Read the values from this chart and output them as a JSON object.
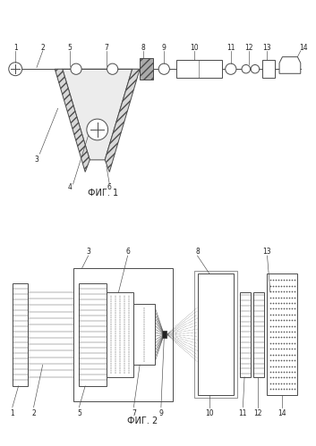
{
  "line_color": "#4a4a4a",
  "lw": 0.7,
  "fig1_caption": "ФИГ. 1",
  "fig2_caption": "ФИГ. 2"
}
